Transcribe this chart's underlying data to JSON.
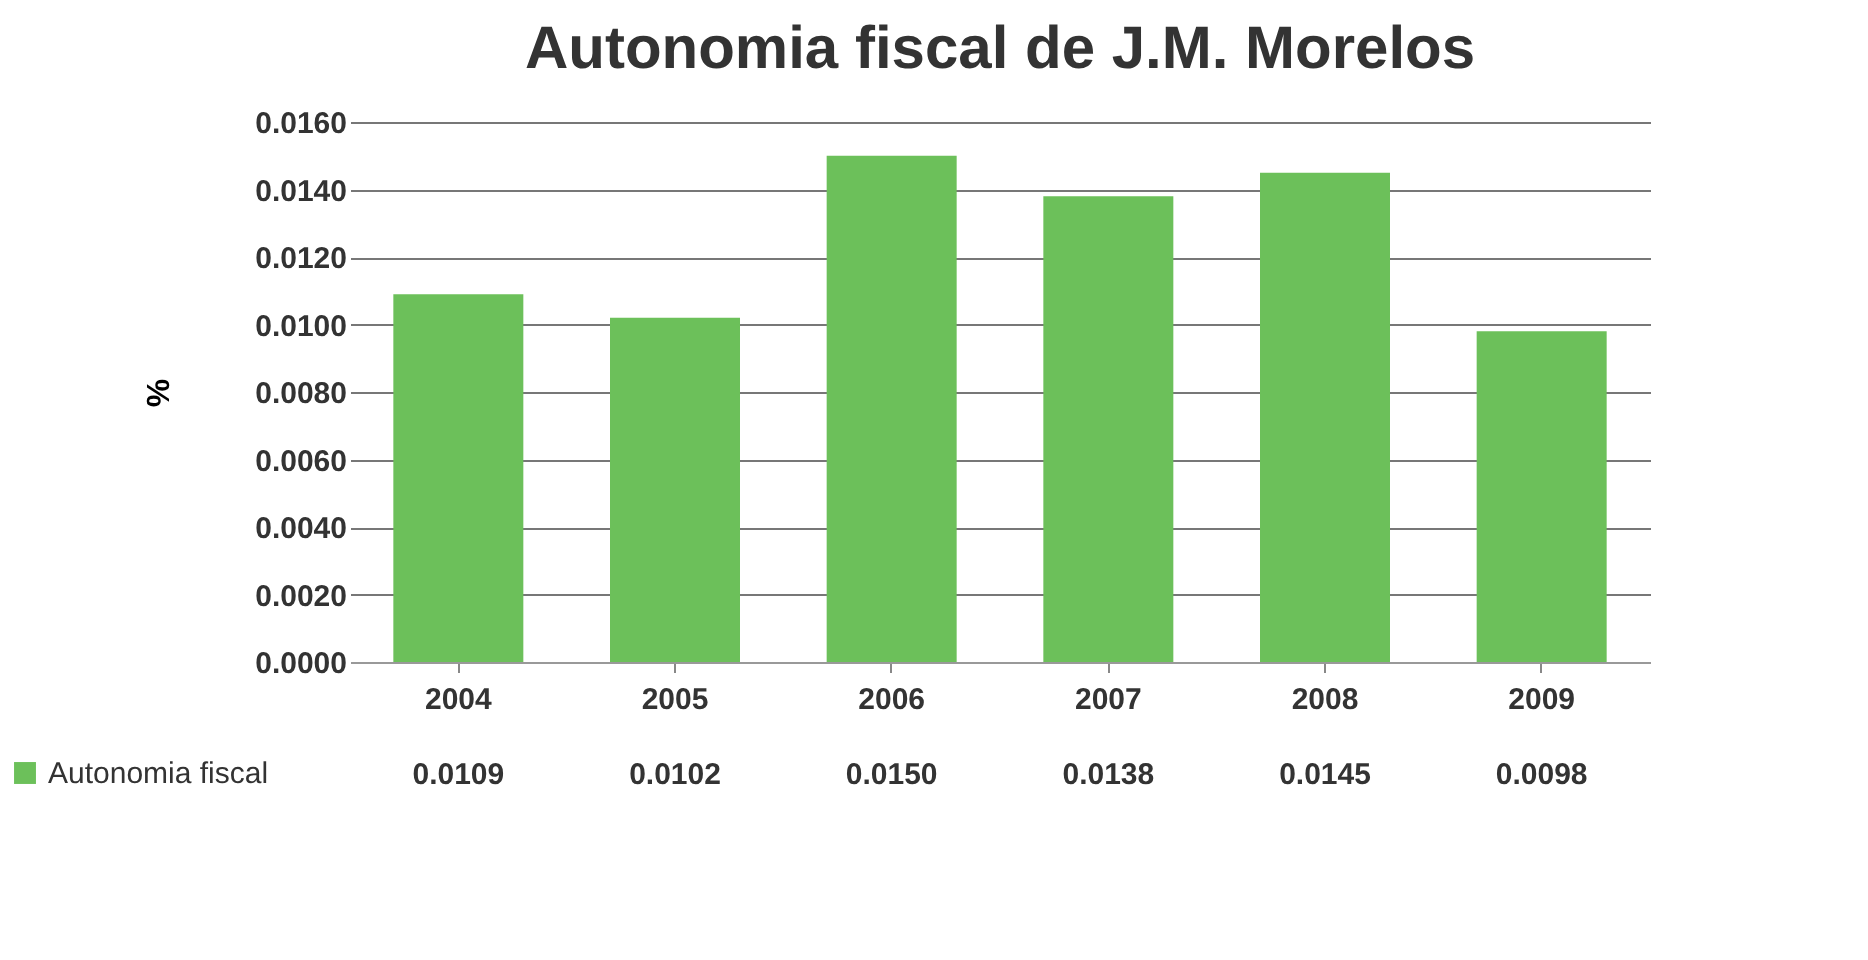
{
  "chart_data": {
    "type": "bar",
    "title": "Autonomia fiscal de J.M. Morelos",
    "ylabel": "%",
    "categories": [
      "2004",
      "2005",
      "2006",
      "2007",
      "2008",
      "2009"
    ],
    "series": [
      {
        "name": "Autonomia fiscal",
        "color": "#6cc05a",
        "values": [
          0.0109,
          0.0102,
          0.015,
          0.0138,
          0.0145,
          0.0098
        ],
        "value_labels": [
          "0.0109",
          "0.0102",
          "0.0150",
          "0.0138",
          "0.0145",
          "0.0098"
        ]
      }
    ],
    "ylim": [
      0,
      0.016
    ],
    "yticks": [
      {
        "value": 0,
        "label": "0.0000"
      },
      {
        "value": 0.002,
        "label": "0.0020"
      },
      {
        "value": 0.004,
        "label": "0.0040"
      },
      {
        "value": 0.006,
        "label": "0.0060"
      },
      {
        "value": 0.008,
        "label": "0.0080"
      },
      {
        "value": 0.01,
        "label": "0.0100"
      },
      {
        "value": 0.012,
        "label": "0.0120"
      },
      {
        "value": 0.014,
        "label": "0.0140"
      },
      {
        "value": 0.016,
        "label": "0.0160"
      }
    ],
    "grid": "y",
    "legend": "bottom left"
  }
}
